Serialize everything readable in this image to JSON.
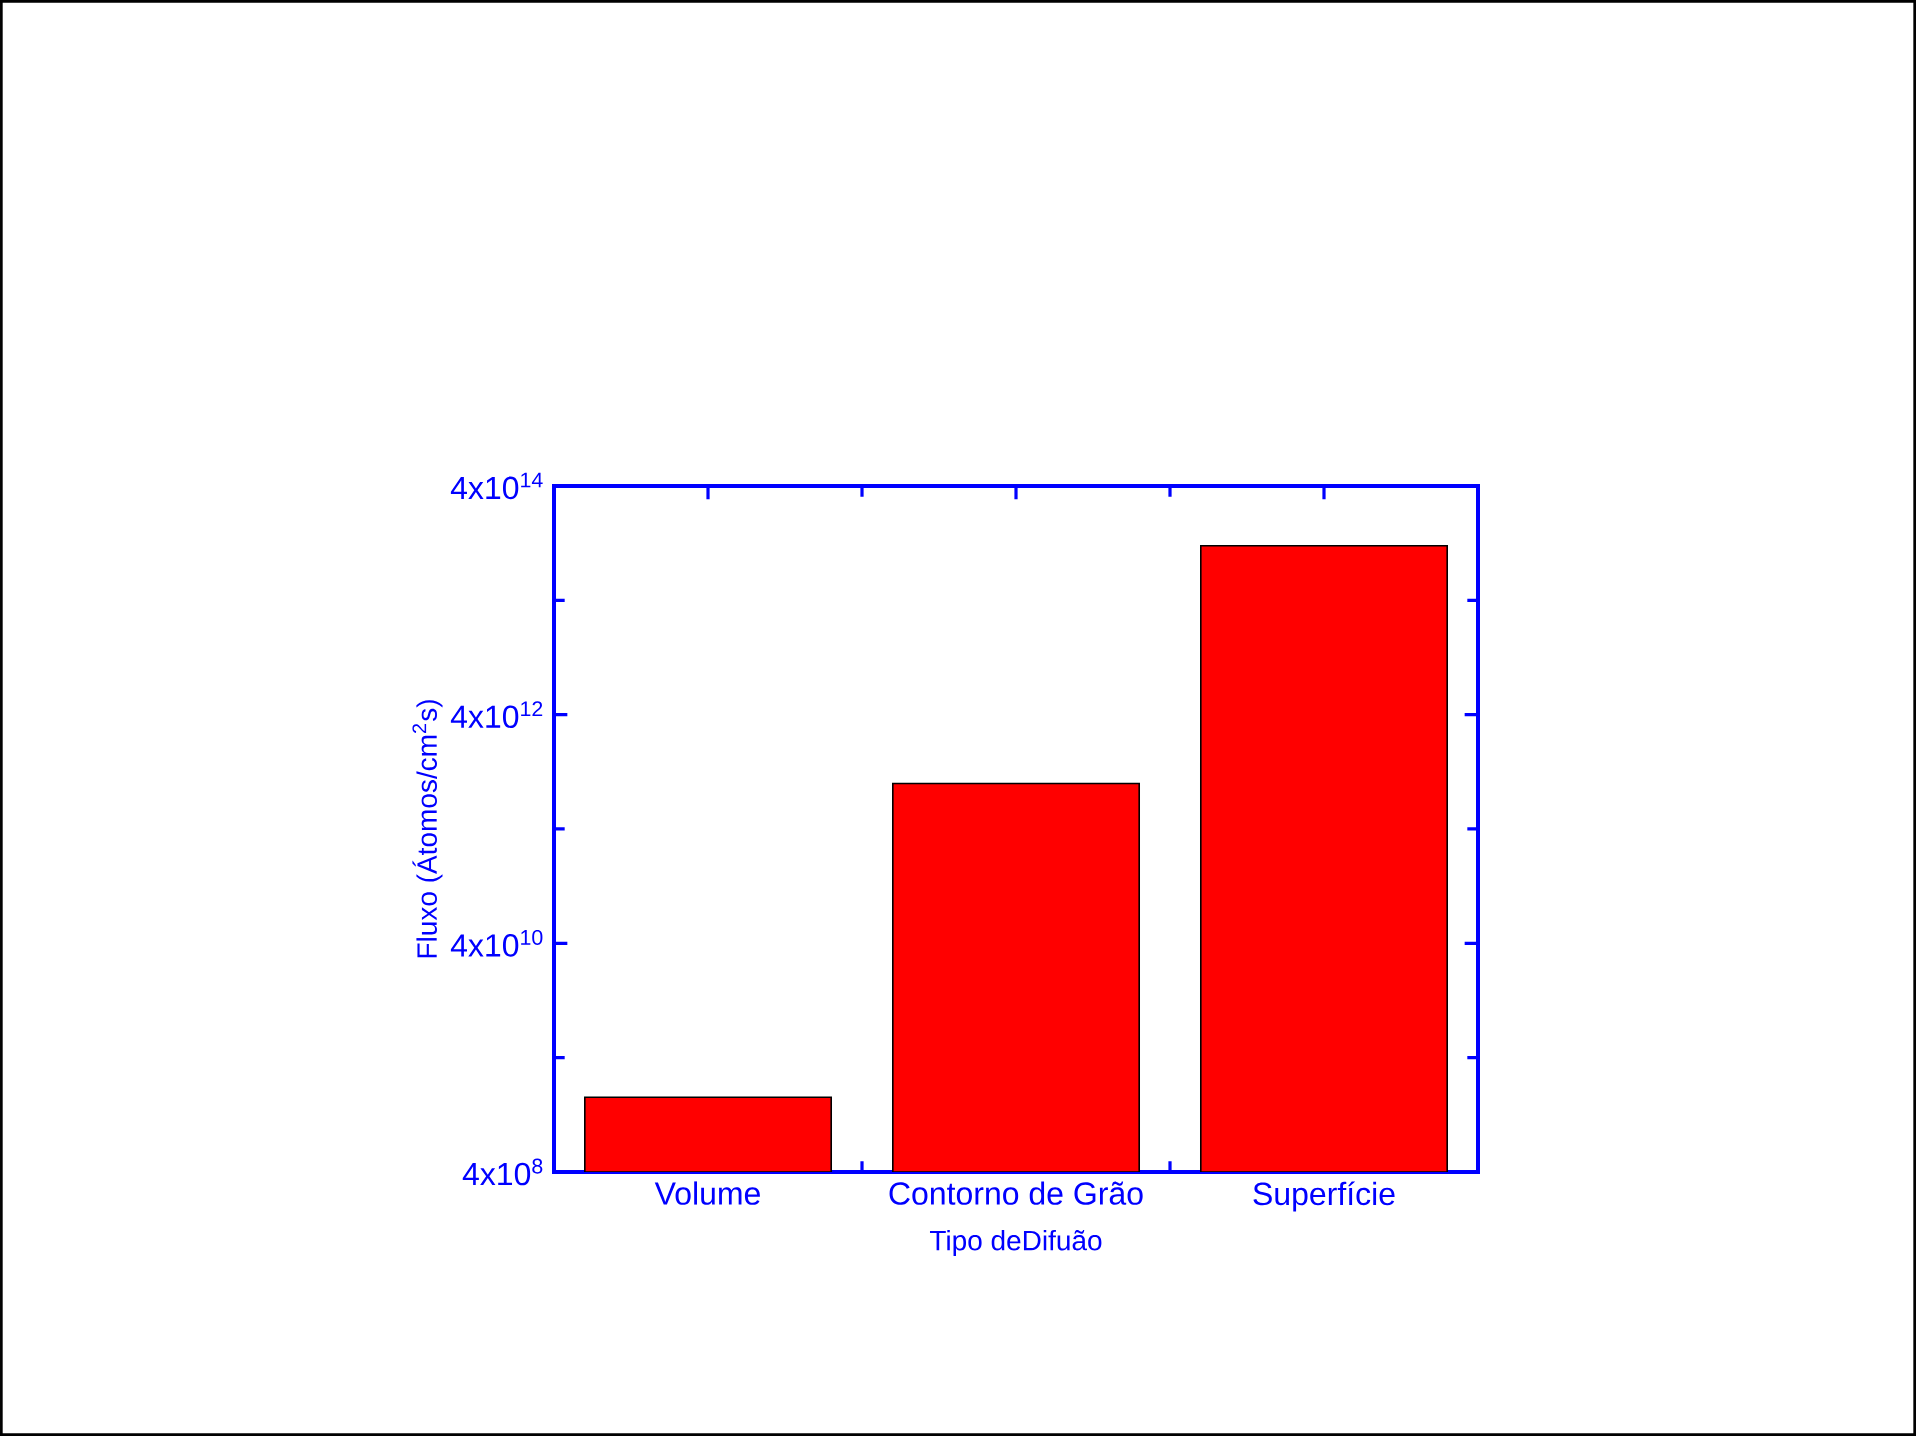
{
  "chart_data": {
    "type": "bar",
    "xlabel": "Tipo deDifuão",
    "ylabel": "Fluxo (Átomos/cm$^{2}$s)",
    "categories": [
      "Volume",
      "Contorno de Grão",
      "Superfície"
    ],
    "values": [
      1800000000.0,
      1000000000000.0,
      120000000000000.0
    ],
    "color": "#ff0000",
    "log": "y",
    "ylim": [
      400000000.0,
      400000000000000.0
    ],
    "yticks": [
      {
        "value": 400000000.0,
        "label": "4x10$^{8}$"
      },
      {
        "value": 4000000000.0,
        "label": null
      },
      {
        "value": 40000000000.0,
        "label": "4x10$^{10}$"
      },
      {
        "value": 400000000000.0,
        "label": null
      },
      {
        "value": 4000000000000.0,
        "label": "4x10$^{12}$"
      },
      {
        "value": 40000000000000.0,
        "label": null
      },
      {
        "value": 400000000000000.0,
        "label": "4x10$^{14}$"
      }
    ],
    "grid": false
  }
}
